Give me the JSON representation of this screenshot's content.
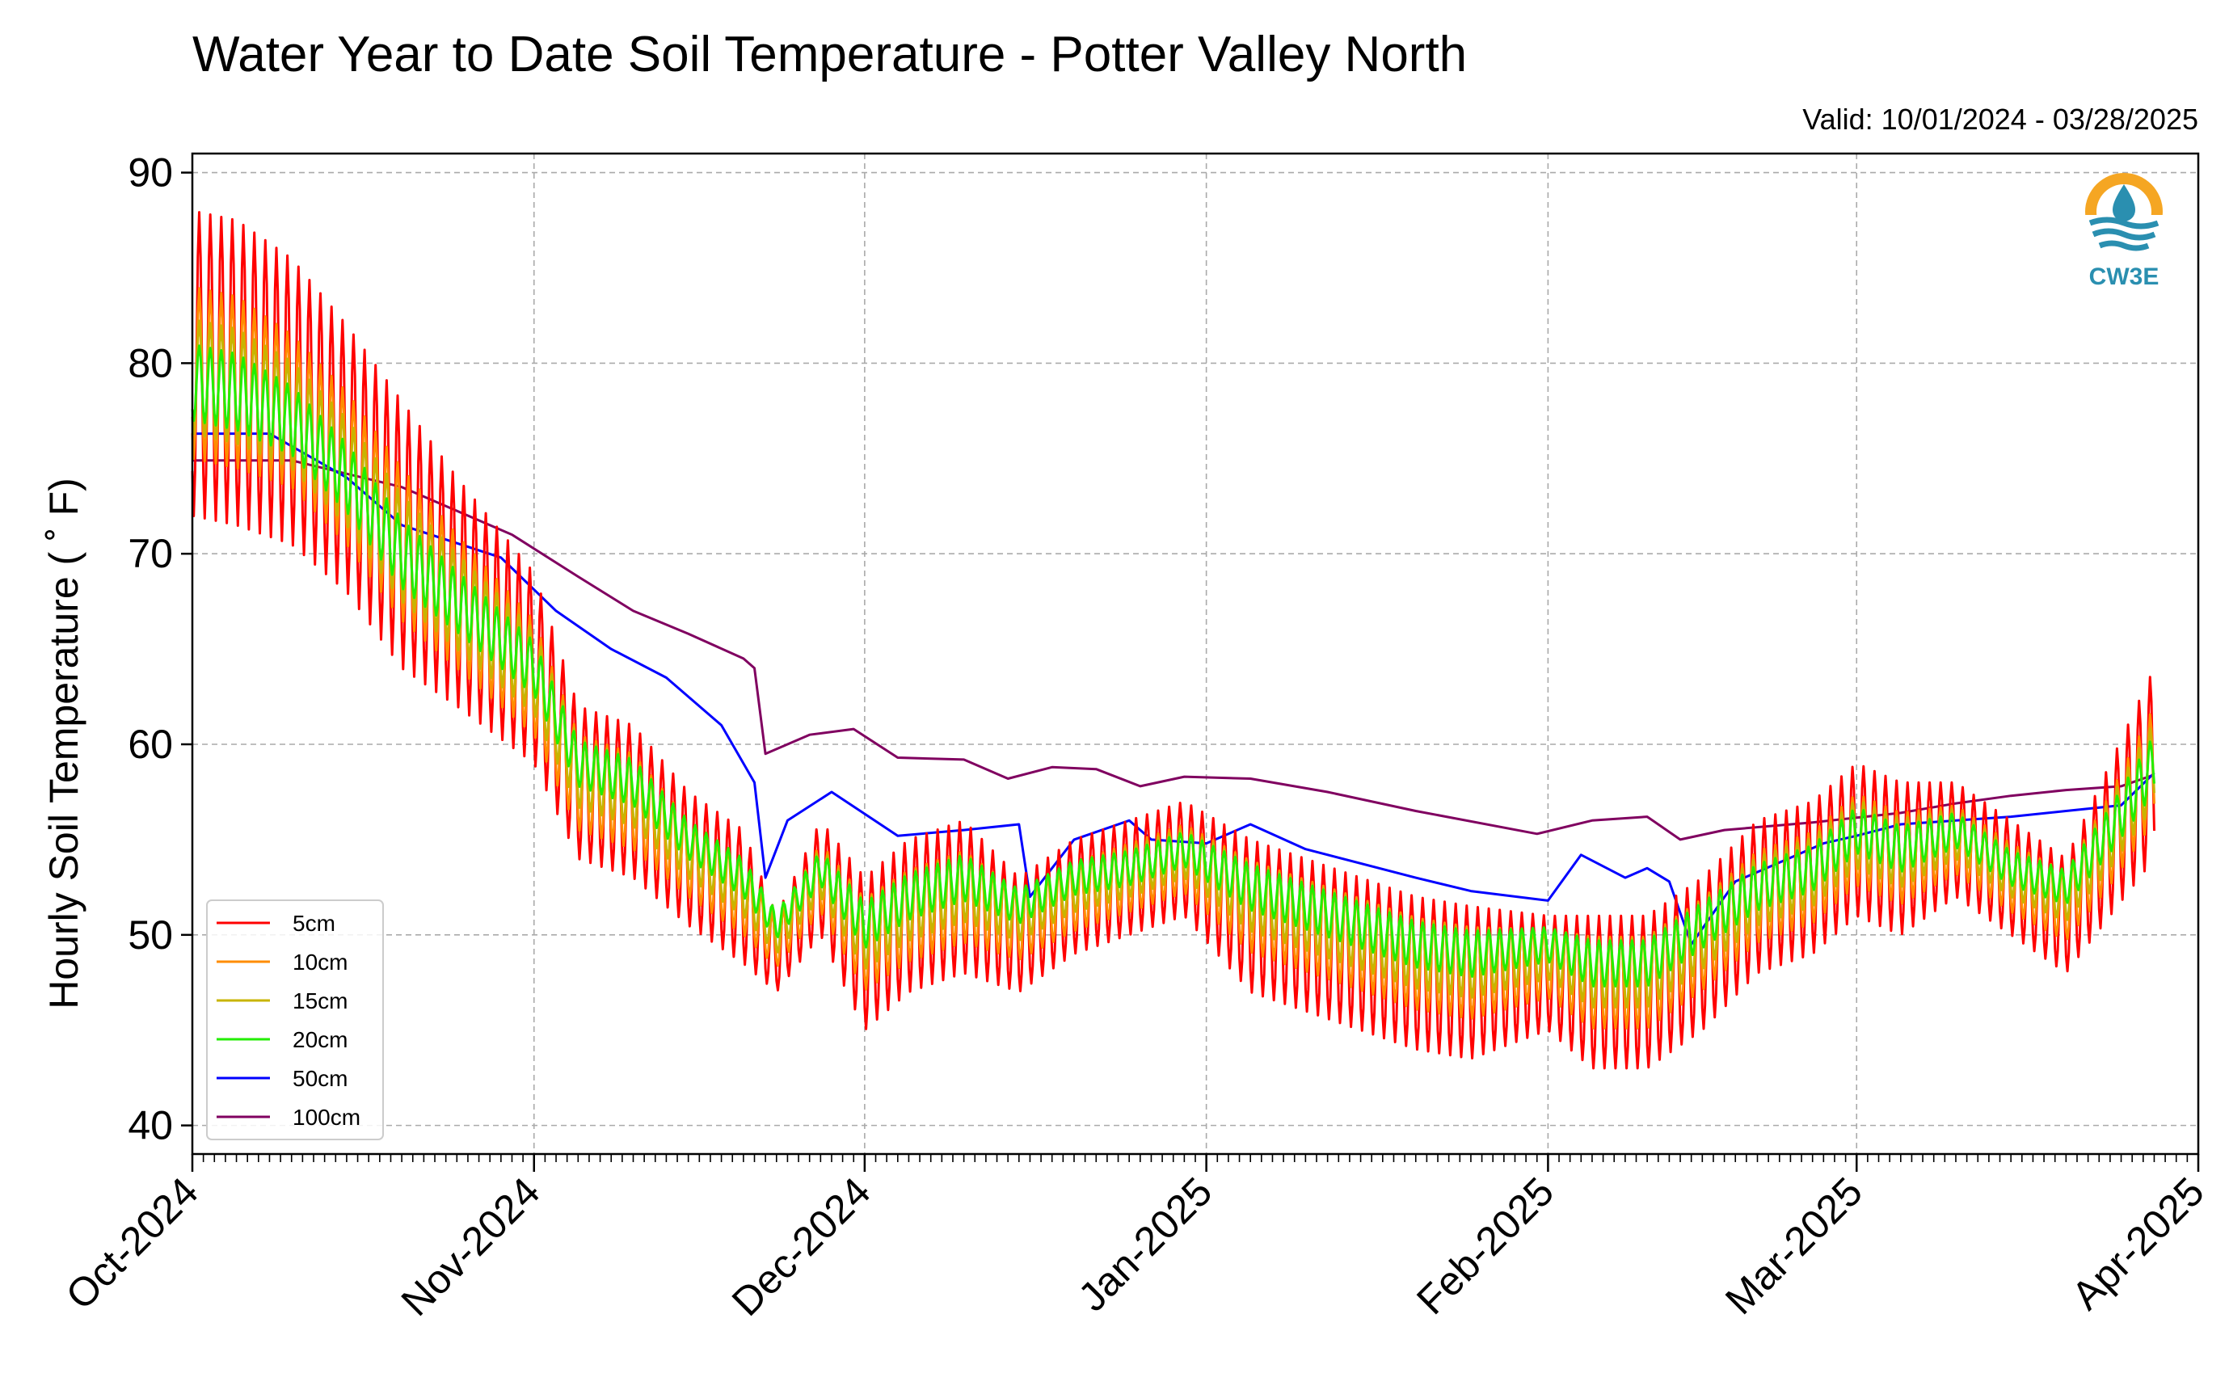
{
  "title": "Water Year to Date Soil Temperature - Potter Valley North",
  "subtitle": "Valid: 10/01/2024 - 03/28/2025",
  "logo_text": "CW3E",
  "chart_data": {
    "type": "line",
    "ylabel": "Hourly Soil Temperature ( ˚ F)",
    "xlabel": "",
    "ylim": [
      38.5,
      91.0
    ],
    "xlim": [
      "2024-10-01",
      "2025-04-01"
    ],
    "y_ticks": [
      "40",
      "50",
      "60",
      "70",
      "80",
      "90"
    ],
    "x_ticks": [
      "Oct-2024",
      "Nov-2024",
      "Dec-2024",
      "Jan-2025",
      "Feb-2025",
      "Mar-2025",
      "Apr-2025"
    ],
    "grid": true,
    "legend_position": "lower-left",
    "series": [
      {
        "name": "5cm",
        "color": "#ff0000",
        "x": [
          "2024-10-01",
          "2024-10-05",
          "2024-10-10",
          "2024-10-15",
          "2024-10-20",
          "2024-10-25",
          "2024-11-01",
          "2024-11-05",
          "2024-11-10",
          "2024-11-15",
          "2024-11-20",
          "2024-11-23",
          "2024-11-27",
          "2024-12-01",
          "2024-12-05",
          "2024-12-10",
          "2024-12-15",
          "2024-12-20",
          "2024-12-25",
          "2024-12-30",
          "2025-01-05",
          "2025-01-10",
          "2025-01-15",
          "2025-01-20",
          "2025-01-25",
          "2025-02-01",
          "2025-02-05",
          "2025-02-10",
          "2025-02-15",
          "2025-02-20",
          "2025-02-25",
          "2025-03-01",
          "2025-03-05",
          "2025-03-10",
          "2025-03-15",
          "2025-03-20",
          "2025-03-24",
          "2025-03-28"
        ],
        "mean": [
          80,
          79.5,
          78,
          75,
          71,
          68,
          64,
          58,
          57,
          54,
          52,
          49,
          53,
          49,
          51,
          52,
          50,
          52,
          53,
          54,
          51,
          50,
          49,
          48,
          47.5,
          48,
          47,
          47,
          49,
          52,
          53,
          55,
          54,
          55,
          53,
          51,
          55,
          59
        ],
        "amp": [
          8,
          8,
          7.5,
          7,
          7,
          6,
          5,
          4,
          4,
          3.5,
          3.5,
          2,
          3,
          4,
          4,
          4,
          3,
          3,
          3,
          3,
          4,
          4,
          4,
          4,
          4,
          3,
          4,
          4,
          4,
          4,
          4,
          4,
          4,
          3,
          3,
          3,
          4,
          5
        ]
      },
      {
        "name": "10cm",
        "color": "#ff8c00",
        "x": [
          "2024-10-01",
          "2024-10-05",
          "2024-10-10",
          "2024-10-15",
          "2024-10-20",
          "2024-10-25",
          "2024-11-01",
          "2024-11-05",
          "2024-11-10",
          "2024-11-15",
          "2024-11-20",
          "2024-11-23",
          "2024-11-27",
          "2024-12-01",
          "2024-12-05",
          "2024-12-10",
          "2024-12-15",
          "2024-12-20",
          "2024-12-25",
          "2024-12-30",
          "2025-01-05",
          "2025-01-10",
          "2025-01-15",
          "2025-01-20",
          "2025-01-25",
          "2025-02-01",
          "2025-02-05",
          "2025-02-10",
          "2025-02-15",
          "2025-02-20",
          "2025-02-25",
          "2025-03-01",
          "2025-03-05",
          "2025-03-10",
          "2025-03-15",
          "2025-03-20",
          "2025-03-24",
          "2025-03-28"
        ],
        "mean": [
          79.5,
          79,
          77.5,
          74.5,
          70.5,
          67.5,
          63.5,
          58,
          57,
          54,
          52,
          49.5,
          53,
          49.5,
          51,
          52,
          50.5,
          52,
          53,
          54,
          51.5,
          50.5,
          49.5,
          48.5,
          48,
          48.5,
          47.5,
          47.5,
          49.5,
          52,
          53,
          55,
          54,
          55,
          53,
          51.5,
          55,
          59
        ],
        "amp": [
          4.5,
          4.5,
          4,
          4,
          4,
          3.5,
          3,
          2.5,
          2.5,
          2,
          2,
          1.2,
          1.8,
          2.4,
          2.4,
          2.4,
          1.8,
          1.8,
          1.8,
          1.8,
          2.4,
          2.4,
          2.4,
          2.4,
          2.4,
          1.8,
          2.4,
          2.4,
          2.4,
          2.4,
          2.4,
          2.4,
          2.4,
          1.8,
          1.8,
          1.8,
          2.4,
          3
        ]
      },
      {
        "name": "15cm",
        "color": "#c8b400",
        "x": [
          "2024-10-01",
          "2024-10-05",
          "2024-10-10",
          "2024-10-15",
          "2024-10-20",
          "2024-10-25",
          "2024-11-01",
          "2024-11-05",
          "2024-11-10",
          "2024-11-15",
          "2024-11-20",
          "2024-11-23",
          "2024-11-27",
          "2024-12-01",
          "2024-12-05",
          "2024-12-10",
          "2024-12-15",
          "2024-12-20",
          "2024-12-25",
          "2024-12-30",
          "2025-01-05",
          "2025-01-10",
          "2025-01-15",
          "2025-01-20",
          "2025-01-25",
          "2025-02-01",
          "2025-02-05",
          "2025-02-10",
          "2025-02-15",
          "2025-02-20",
          "2025-02-25",
          "2025-03-01",
          "2025-03-05",
          "2025-03-10",
          "2025-03-15",
          "2025-03-20",
          "2025-03-24",
          "2025-03-28"
        ],
        "mean": [
          79.3,
          78.8,
          77.3,
          74.3,
          70.3,
          67.5,
          63.8,
          58.5,
          57.5,
          54.5,
          52.5,
          50,
          53.3,
          50,
          51.5,
          52.5,
          51,
          52.5,
          53.3,
          54.3,
          52,
          51,
          50,
          49,
          48.5,
          49,
          48,
          48,
          50,
          52.3,
          53.3,
          55.3,
          54.3,
          55.3,
          53.3,
          52,
          55.3,
          59
        ],
        "amp": [
          3,
          3,
          2.8,
          2.8,
          2.8,
          2.5,
          2.2,
          1.8,
          1.8,
          1.5,
          1.5,
          1,
          1.3,
          1.8,
          1.8,
          1.8,
          1.3,
          1.3,
          1.3,
          1.3,
          1.8,
          1.8,
          1.8,
          1.8,
          1.8,
          1.3,
          1.8,
          1.8,
          1.8,
          1.8,
          1.8,
          1.8,
          1.8,
          1.3,
          1.3,
          1.3,
          1.8,
          2.2
        ]
      },
      {
        "name": "20cm",
        "color": "#22ee00",
        "x": [
          "2024-10-01",
          "2024-10-05",
          "2024-10-10",
          "2024-10-15",
          "2024-10-20",
          "2024-10-25",
          "2024-11-01",
          "2024-11-05",
          "2024-11-10",
          "2024-11-15",
          "2024-11-20",
          "2024-11-23",
          "2024-11-27",
          "2024-12-01",
          "2024-12-05",
          "2024-12-10",
          "2024-12-15",
          "2024-12-20",
          "2024-12-25",
          "2024-12-30",
          "2025-01-05",
          "2025-01-10",
          "2025-01-15",
          "2025-01-20",
          "2025-01-25",
          "2025-02-01",
          "2025-02-05",
          "2025-02-10",
          "2025-02-15",
          "2025-02-20",
          "2025-02-25",
          "2025-03-01",
          "2025-03-05",
          "2025-03-10",
          "2025-03-15",
          "2025-03-20",
          "2025-03-24",
          "2025-03-28"
        ],
        "mean": [
          79,
          78.5,
          77,
          74,
          70,
          67.5,
          64,
          59,
          58,
          55,
          53,
          50.5,
          53.5,
          50.5,
          52,
          53,
          51.5,
          53,
          53.5,
          54.5,
          52.5,
          51.5,
          50.5,
          49.5,
          49,
          49.5,
          48.5,
          48.5,
          50.5,
          52.5,
          53.5,
          55.5,
          54.5,
          55.5,
          53.5,
          52.5,
          55.5,
          59
        ],
        "amp": [
          2,
          2,
          1.8,
          1.8,
          1.8,
          1.6,
          1.4,
          1.2,
          1.2,
          1,
          1,
          0.7,
          0.9,
          1.2,
          1.2,
          1.2,
          0.9,
          0.9,
          0.9,
          0.9,
          1.2,
          1.2,
          1.2,
          1.2,
          1.2,
          0.9,
          1.2,
          1.2,
          1.2,
          1.2,
          1.2,
          1.2,
          1.2,
          0.9,
          0.9,
          0.9,
          1.2,
          1.5
        ]
      },
      {
        "name": "50cm",
        "color": "#0000ff",
        "x": [
          "2024-10-01",
          "2024-10-08",
          "2024-10-15",
          "2024-10-20",
          "2024-10-29",
          "2024-11-03",
          "2024-11-08",
          "2024-11-13",
          "2024-11-18",
          "2024-11-21",
          "2024-11-22",
          "2024-11-24",
          "2024-11-28",
          "2024-12-04",
          "2024-12-10",
          "2024-12-15",
          "2024-12-16",
          "2024-12-20",
          "2024-12-25",
          "2024-12-27",
          "2025-01-01",
          "2025-01-05",
          "2025-01-10",
          "2025-01-20",
          "2025-01-25",
          "2025-02-01",
          "2025-02-04",
          "2025-02-08",
          "2025-02-10",
          "2025-02-12",
          "2025-02-14",
          "2025-02-18",
          "2025-02-22",
          "2025-02-26",
          "2025-03-01",
          "2025-03-05",
          "2025-03-10",
          "2025-03-15",
          "2025-03-20",
          "2025-03-25",
          "2025-03-28"
        ],
        "values": [
          76.3,
          76.3,
          74,
          71.5,
          69.8,
          67,
          65,
          63.5,
          61,
          58,
          53,
          56,
          57.5,
          55.2,
          55.5,
          55.8,
          52,
          55,
          56,
          55,
          54.8,
          55.8,
          54.5,
          53,
          52.3,
          51.8,
          54.2,
          53,
          53.5,
          52.8,
          49.5,
          52.8,
          53.8,
          54.8,
          55.2,
          55.8,
          56,
          56.2,
          56.5,
          56.8,
          58.5
        ]
      },
      {
        "name": "100cm",
        "color": "#800060",
        "x": [
          "2024-10-01",
          "2024-10-10",
          "2024-10-20",
          "2024-10-30",
          "2024-11-05",
          "2024-11-10",
          "2024-11-15",
          "2024-11-20",
          "2024-11-21",
          "2024-11-22",
          "2024-11-26",
          "2024-11-30",
          "2024-12-04",
          "2024-12-10",
          "2024-12-14",
          "2024-12-18",
          "2024-12-22",
          "2024-12-26",
          "2024-12-30",
          "2025-01-05",
          "2025-01-12",
          "2025-01-20",
          "2025-01-31",
          "2025-02-05",
          "2025-02-10",
          "2025-02-13",
          "2025-02-17",
          "2025-02-25",
          "2025-03-05",
          "2025-03-10",
          "2025-03-15",
          "2025-03-20",
          "2025-03-25",
          "2025-03-28"
        ],
        "values": [
          74.9,
          74.9,
          73.5,
          71,
          68.8,
          67,
          65.8,
          64.5,
          64,
          59.5,
          60.5,
          60.8,
          59.3,
          59.2,
          58.2,
          58.8,
          58.7,
          57.8,
          58.3,
          58.2,
          57.5,
          56.5,
          55.3,
          56,
          56.2,
          55,
          55.5,
          55.9,
          56.4,
          56.9,
          57.3,
          57.6,
          57.8,
          58.4
        ]
      }
    ]
  }
}
